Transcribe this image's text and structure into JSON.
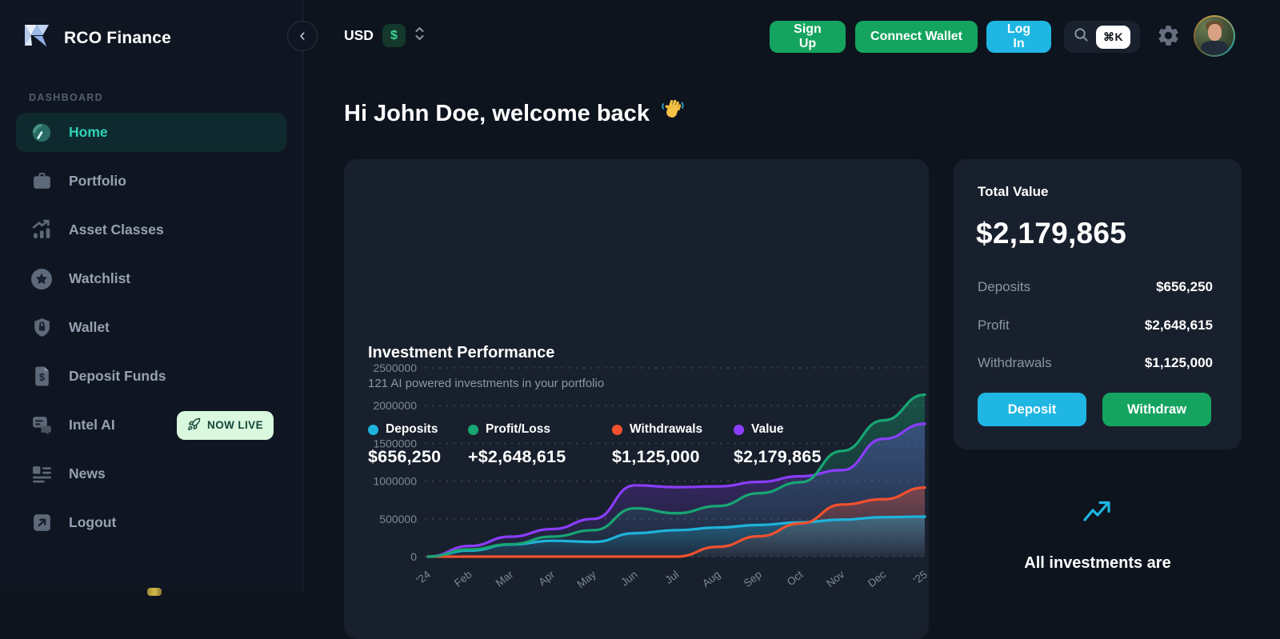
{
  "brand": {
    "name": "RCO Finance"
  },
  "sidebar": {
    "collapse_icon": "‹",
    "section_label": "DASHBOARD",
    "items": [
      {
        "label": "Home",
        "icon": "gauge-icon",
        "active": true
      },
      {
        "label": "Portfolio",
        "icon": "briefcase-icon"
      },
      {
        "label": "Asset Classes",
        "icon": "chart-bars-icon"
      },
      {
        "label": "Watchlist",
        "icon": "star-icon"
      },
      {
        "label": "Wallet",
        "icon": "shield-lock-icon"
      },
      {
        "label": "Deposit Funds",
        "icon": "dollar-doc-icon"
      },
      {
        "label": "Intel AI",
        "icon": "chat-icon",
        "badge": "NOW LIVE"
      },
      {
        "label": "News",
        "icon": "news-icon"
      },
      {
        "label": "Logout",
        "icon": "logout-icon"
      }
    ]
  },
  "topbar": {
    "currency": {
      "code": "USD",
      "symbol": "$"
    },
    "sign_up_label": "Sign Up",
    "connect_wallet_label": "Connect Wallet",
    "log_in_label": "Log In",
    "search": {
      "shortcut": "⌘K"
    }
  },
  "main": {
    "greeting": "Hi John Doe, welcome back",
    "greeting_emoji": "waving-hand",
    "performance_card": {
      "title": "Investment Performance",
      "subtitle": "121 AI powered investments in your portfolio",
      "legend": [
        {
          "label": "Deposits",
          "value": "$656,250",
          "color": "#1db4dc"
        },
        {
          "label": "Profit/Loss",
          "value": "+$2,648,615",
          "color": "#17a673"
        },
        {
          "label": "Withdrawals",
          "value": "$1,125,000",
          "color": "#f2512e"
        },
        {
          "label": "Value",
          "value": "$2,179,865",
          "color": "#8b3dff"
        }
      ]
    },
    "total_card": {
      "title": "Total Value",
      "total": "$2,179,865",
      "rows": [
        {
          "label": "Deposits",
          "value": "$656,250"
        },
        {
          "label": "Profit",
          "value": "$2,648,615"
        },
        {
          "label": "Withdrawals",
          "value": "$1,125,000"
        }
      ],
      "deposit_label": "Deposit",
      "withdraw_label": "Withdraw"
    },
    "footer_note": "All investments are"
  },
  "chart_data": {
    "type": "area",
    "title": "Investment Performance",
    "x": [
      "'24",
      "Feb",
      "Mar",
      "Apr",
      "May",
      "Jun",
      "Jul",
      "Aug",
      "Sep",
      "Oct",
      "Nov",
      "Dec",
      "'25"
    ],
    "series": [
      {
        "name": "Deposits",
        "color": "#1db4dc",
        "values": [
          0,
          80000,
          160000,
          210000,
          195000,
          310000,
          350000,
          385000,
          420000,
          455000,
          490000,
          523000,
          530000
        ]
      },
      {
        "name": "Profit/Loss",
        "color": "#17a673",
        "values": [
          0,
          95000,
          165000,
          265000,
          350000,
          640000,
          575000,
          670000,
          840000,
          985000,
          1400000,
          1805000,
          2145000
        ]
      },
      {
        "name": "Withdrawals",
        "color": "#f2512e",
        "values": [
          0,
          0,
          0,
          0,
          0,
          0,
          0,
          130000,
          270000,
          440000,
          690000,
          760000,
          915000
        ]
      },
      {
        "name": "Value",
        "color": "#8b3dff",
        "values": [
          0,
          140000,
          265000,
          365000,
          500000,
          945000,
          920000,
          930000,
          990000,
          1065000,
          1145000,
          1560000,
          1760000
        ]
      }
    ],
    "ylim": [
      0,
      2500000
    ],
    "yticks": [
      0,
      500000,
      1000000,
      1500000,
      2000000,
      2500000
    ],
    "grid": "horizontal-dotted",
    "legend_position": "top"
  }
}
